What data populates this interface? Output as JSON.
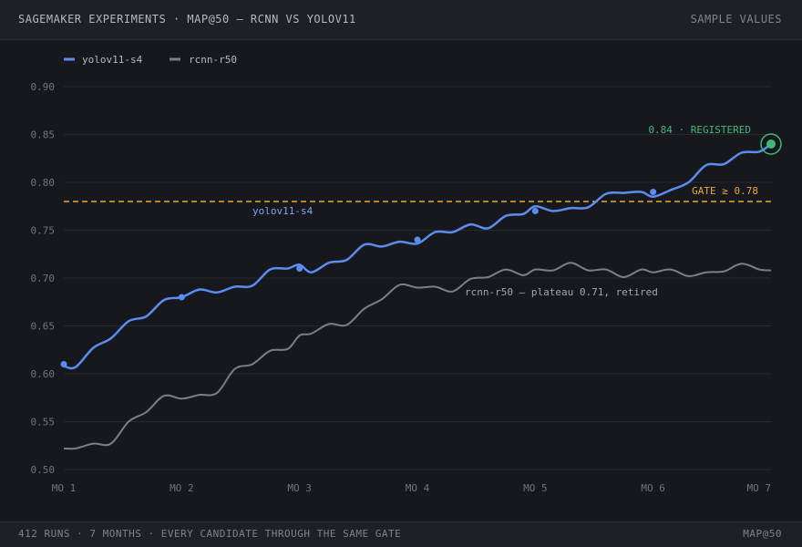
{
  "header": {
    "title": "SAGEMAKER EXPERIMENTS · MAP@50 — RCNN VS YOLOV11",
    "badge": "SAMPLE VALUES"
  },
  "footer": {
    "left": "412 RUNS · 7 MONTHS · EVERY CANDIDATE THROUGH THE SAME GATE",
    "right": "MAP@50"
  },
  "colors": {
    "yolo": "#5b8def",
    "rcnn": "#7c7f86",
    "gate": "#e8a838",
    "registered": "#3fb87a",
    "grid": "#262930",
    "tick": "#6f757e"
  },
  "chart_data": {
    "type": "line",
    "x": [
      "MO 1",
      "MO 2",
      "MO 3",
      "MO 4",
      "MO 5",
      "MO 6",
      "MO 7"
    ],
    "ylim": [
      0.5,
      0.9
    ],
    "yticks": [
      "0.50",
      "0.55",
      "0.60",
      "0.65",
      "0.70",
      "0.75",
      "0.80",
      "0.85",
      "0.90"
    ],
    "grid": true,
    "legend_position": "top-left",
    "series": [
      {
        "name": "yolov11-s4",
        "label": "yolov11-s4",
        "x": [
          1.0,
          1.1,
          1.25,
          1.4,
          1.55,
          1.7,
          1.85,
          2.0,
          2.15,
          2.3,
          2.45,
          2.6,
          2.75,
          2.9,
          3.0,
          3.1,
          3.25,
          3.4,
          3.55,
          3.7,
          3.85,
          4.0,
          4.15,
          4.3,
          4.45,
          4.6,
          4.75,
          4.9,
          5.0,
          5.15,
          5.3,
          5.45,
          5.6,
          5.75,
          5.9,
          6.0,
          6.15,
          6.3,
          6.45,
          6.6,
          6.75,
          6.9,
          7.0
        ],
        "values": [
          0.608,
          0.607,
          0.627,
          0.637,
          0.655,
          0.66,
          0.677,
          0.68,
          0.688,
          0.685,
          0.691,
          0.692,
          0.709,
          0.71,
          0.714,
          0.706,
          0.716,
          0.719,
          0.735,
          0.733,
          0.738,
          0.736,
          0.748,
          0.748,
          0.756,
          0.752,
          0.765,
          0.767,
          0.775,
          0.77,
          0.773,
          0.774,
          0.788,
          0.789,
          0.79,
          0.785,
          0.792,
          0.8,
          0.818,
          0.819,
          0.831,
          0.832,
          0.84
        ],
        "markers": {
          "x": [
            1,
            2,
            3,
            4,
            5,
            6
          ],
          "values": [
            0.61,
            0.68,
            0.71,
            0.74,
            0.77,
            0.79
          ]
        }
      },
      {
        "name": "rcnn-r50",
        "label": "rcnn-r50 — plateau 0.71, retired",
        "x": [
          1.0,
          1.1,
          1.25,
          1.4,
          1.55,
          1.7,
          1.85,
          2.0,
          2.15,
          2.3,
          2.45,
          2.6,
          2.75,
          2.9,
          3.0,
          3.1,
          3.25,
          3.4,
          3.55,
          3.7,
          3.85,
          4.0,
          4.15,
          4.3,
          4.45,
          4.6,
          4.75,
          4.9,
          5.0,
          5.15,
          5.3,
          5.45,
          5.6,
          5.75,
          5.9,
          6.0,
          6.15,
          6.3,
          6.45,
          6.6,
          6.75,
          6.9,
          7.0
        ],
        "values": [
          0.522,
          0.522,
          0.527,
          0.527,
          0.55,
          0.56,
          0.577,
          0.574,
          0.578,
          0.58,
          0.605,
          0.61,
          0.624,
          0.626,
          0.64,
          0.642,
          0.652,
          0.651,
          0.668,
          0.678,
          0.693,
          0.69,
          0.691,
          0.686,
          0.699,
          0.701,
          0.709,
          0.703,
          0.709,
          0.708,
          0.716,
          0.708,
          0.709,
          0.701,
          0.709,
          0.706,
          0.709,
          0.702,
          0.706,
          0.707,
          0.715,
          0.709,
          0.708
        ]
      }
    ],
    "gate": {
      "value": 0.78,
      "label": "GATE ≥ 0.78"
    },
    "registered": {
      "x": 7,
      "value": 0.84,
      "label": "0.84 · REGISTERED"
    }
  }
}
